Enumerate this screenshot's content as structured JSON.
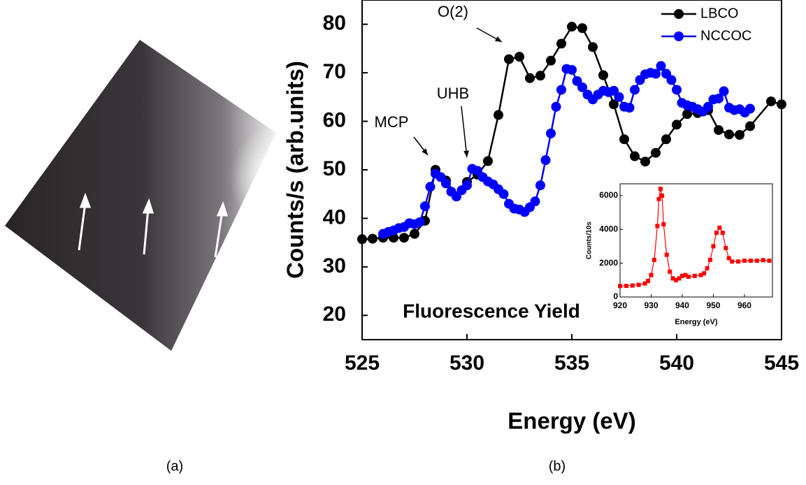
{
  "panels": {
    "left": "(a)",
    "right": "(b)"
  },
  "chart_data": [
    {
      "type": "line",
      "x_label": "Energy (eV)",
      "y_label": "Counts/s (arb.units)",
      "xlim": [
        525,
        545
      ],
      "xticks": [
        525,
        530,
        535,
        540,
        545
      ],
      "ylim": [
        15,
        85
      ],
      "yticks": [
        20,
        30,
        40,
        50,
        60,
        70,
        80
      ],
      "legend": "top-right",
      "annotations": [
        "O(2)",
        "UHB",
        "MCP",
        "Fluorescence Yield"
      ],
      "series": [
        {
          "name": "LBCO",
          "color": "#000000",
          "x": [
            525,
            525.5,
            526,
            526.5,
            527,
            527.5,
            528,
            528.5,
            529,
            529.5,
            530,
            530.5,
            531,
            531.5,
            532,
            532.5,
            533,
            533.5,
            534,
            534.5,
            535,
            535.5,
            536,
            536.5,
            537,
            537.5,
            538,
            538.5,
            539,
            539.5,
            540,
            540.5,
            541,
            541.5,
            542,
            542.5,
            543,
            543.5,
            544.5,
            545
          ],
          "values": [
            35.7,
            35.8,
            36,
            36,
            36,
            36.8,
            39.5,
            50,
            47.8,
            44.5,
            47.5,
            49,
            51.8,
            61.3,
            72.8,
            73.3,
            68.9,
            69.4,
            72.5,
            76,
            79.5,
            79.2,
            75.3,
            69.5,
            63.5,
            56.3,
            52.8,
            51.7,
            53.5,
            56.3,
            59.3,
            61.5,
            61.7,
            62.3,
            58.2,
            57.3,
            57.2,
            59,
            64.1,
            63.5
          ]
        },
        {
          "name": "NCCOC",
          "color": "#0000ff",
          "x": [
            526,
            526.25,
            526.5,
            526.75,
            527,
            527.25,
            527.5,
            527.75,
            528,
            528.25,
            528.5,
            528.75,
            529,
            529.25,
            529.5,
            529.75,
            530,
            530.25,
            530.5,
            530.75,
            531,
            531.25,
            531.5,
            531.75,
            532,
            532.25,
            532.5,
            532.75,
            533,
            533.25,
            533.5,
            533.75,
            534,
            534.25,
            534.5,
            534.75,
            535,
            535.25,
            535.5,
            535.75,
            536,
            536.25,
            536.5,
            536.75,
            537,
            537.25,
            537.5,
            537.75,
            538,
            538.25,
            538.5,
            538.75,
            539,
            539.25,
            539.5,
            539.75,
            540,
            540.25,
            540.5,
            540.75,
            541,
            541.25,
            541.5,
            541.75,
            542,
            542.25,
            542.5,
            542.75,
            543,
            543.25,
            543.5
          ],
          "values": [
            36.8,
            37.2,
            37.5,
            38,
            38.2,
            39,
            38.8,
            39.2,
            42.5,
            46.5,
            49.2,
            48.5,
            47.2,
            45.5,
            44.5,
            45.8,
            46.8,
            50.2,
            49.8,
            48.5,
            47.6,
            47,
            46,
            45,
            43,
            42,
            41.8,
            41.3,
            42.3,
            43.5,
            46.8,
            52,
            57.5,
            63,
            66.5,
            70.8,
            70.6,
            68.3,
            67,
            65.5,
            64.5,
            65.5,
            66.3,
            66,
            66.3,
            65,
            63,
            62.8,
            66.5,
            68.5,
            69.7,
            70,
            69.8,
            71.4,
            69.8,
            68.5,
            66.5,
            63.8,
            63.3,
            63,
            62.5,
            62,
            63,
            64.5,
            64.7,
            66.2,
            62.8,
            62.3,
            62.5,
            61.8,
            62.6
          ]
        }
      ]
    },
    {
      "type": "line",
      "x_label": "Energy (eV)",
      "y_label": "Counts/10s",
      "xlim": [
        920,
        969
      ],
      "xticks": [
        920,
        930,
        940,
        950,
        960
      ],
      "ylim": [
        0,
        6700
      ],
      "yticks": [
        0,
        2000,
        4000,
        6000
      ],
      "series": [
        {
          "color": "#ff0000",
          "x": [
            920,
            922,
            924,
            926,
            928,
            929,
            930,
            931,
            932,
            932.5,
            933,
            933.5,
            934,
            935,
            936,
            937,
            938,
            939,
            940,
            941,
            942,
            944,
            946,
            947,
            948,
            949,
            950,
            951,
            952,
            953,
            954,
            955,
            956,
            958,
            960,
            962,
            964,
            966,
            968
          ],
          "values": [
            650,
            660,
            680,
            720,
            800,
            950,
            1300,
            2200,
            4200,
            5800,
            6400,
            6000,
            4300,
            2500,
            1500,
            1100,
            1000,
            1100,
            1250,
            1300,
            1200,
            1250,
            1300,
            1400,
            1700,
            2200,
            3000,
            3800,
            4100,
            3800,
            2900,
            2300,
            2100,
            2100,
            2150,
            2150,
            2150,
            2180,
            2150
          ]
        }
      ]
    }
  ]
}
